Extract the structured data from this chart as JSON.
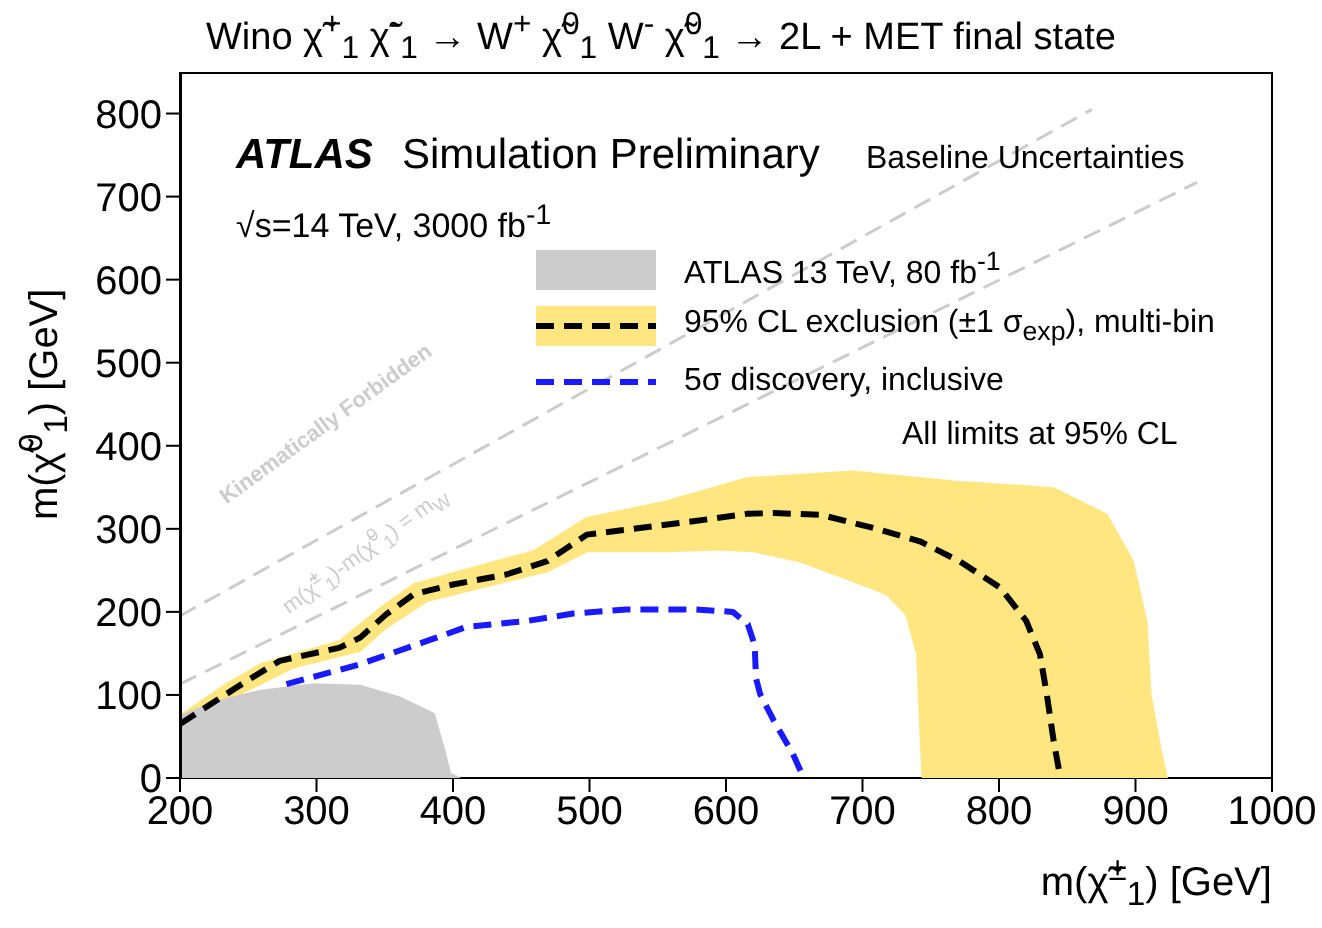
{
  "chart_data": {
    "type": "line",
    "title": "Wino χ̃$^{+}$$_{1}$ χ̃$^{-}$$_{1}$ → W$^{+}$ χ̃$^{0}$$_{1}$ W$^{-}$ χ̃$^{0}$$_{1}$ → 2L + MET final state",
    "xlabel": "m(χ̃$^{±}$$_{1}$) [GeV]",
    "ylabel": "m(χ̃$^{0}$$_{1}$) [GeV]",
    "annotations": [
      "ATLAS",
      "Simulation Preliminary",
      "Baseline Uncertainties",
      "√s=14 TeV, 3000 fb$^{-1}$",
      "All limits at 95% CL",
      "Kinematically Forbidden",
      "m(χ̃$^{±}$$_{1}$)-m(χ̃$^{0}$$_{1}$) = m$_{W}$"
    ],
    "xlim": [
      200,
      1000
    ],
    "xticks": [
      200,
      300,
      400,
      500,
      600,
      700,
      800,
      900,
      1000
    ],
    "ylim": [
      0,
      850
    ],
    "yticks": [
      0,
      100,
      200,
      300,
      400,
      500,
      600,
      700,
      800
    ],
    "legend": "top right",
    "marker": "none",
    "series": [
      {
        "name": "ATLAS 13 TeV, 80 fb$^{-1}$",
        "type": "area",
        "color": "#cccccc",
        "x": [
          200,
          229,
          259,
          298,
          332,
          361,
          386,
          393,
          398,
          405,
          200
        ],
        "values": [
          75,
          93,
          105,
          113,
          111,
          97,
          77,
          37,
          5,
          0,
          0
        ]
      },
      {
        "type": "area",
        "color": "#ffe680",
        "x": [
          200,
          234,
          259,
          317,
          347,
          371,
          405,
          459,
          498,
          556,
          615,
          693,
          767,
          840,
          879,
          898,
          908,
          911,
          918,
          923,
          744,
          742,
          740,
          732,
          718,
          693,
          654,
          620,
          596,
          556,
          498,
          469,
          420,
          381,
          351,
          332,
          283,
          244,
          215,
          200
        ],
        "values": [
          75,
          113,
          137,
          165,
          205,
          233,
          249,
          273,
          313,
          333,
          361,
          369,
          357,
          349,
          317,
          261,
          189,
          101,
          37,
          0,
          0,
          69,
          149,
          197,
          221,
          237,
          261,
          273,
          275,
          273,
          273,
          249,
          229,
          213,
          181,
          153,
          133,
          101,
          null,
          58
        ]
      },
      {
        "name": "95% CL exclusion (±1 σ$_{exp}$), multi-bin",
        "line_style": "dashed",
        "color": "#000000",
        "x": [
          200,
          249,
          273,
          317,
          332,
          351,
          371,
          400,
          439,
          469,
          498,
          527,
          576,
          615,
          635,
          669,
          708,
          742,
          771,
          801,
          820,
          830,
          835,
          840,
          845
        ],
        "values": [
          65,
          117,
          141,
          157,
          169,
          197,
          221,
          233,
          245,
          261,
          293,
          299,
          309,
          318,
          319,
          317,
          301,
          285,
          261,
          229,
          189,
          149,
          101,
          45,
          0
        ]
      },
      {
        "name": "5σ discovery, inclusive",
        "line_style": "dashed",
        "color": "#1a1aff",
        "x": [
          278,
          332,
          381,
          410,
          454,
          488,
          527,
          576,
          605,
          616,
          621,
          622,
          625,
          635,
          649,
          657
        ],
        "values": [
          113,
          137,
          165,
          182,
          189,
          198,
          203,
          203,
          200,
          185,
          160,
          120,
          101,
          69,
          29,
          0
        ]
      },
      {
        "line_style": "dashed",
        "color": "#cccccc",
        "x": [
          200,
          868
        ],
        "values": [
          195,
          805
        ]
      },
      {
        "line_style": "dashed",
        "color": "#cccccc",
        "x": [
          200,
          945
        ],
        "values": [
          113,
          717
        ]
      }
    ]
  }
}
